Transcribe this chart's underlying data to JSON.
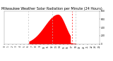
{
  "title": "Milwaukee Weather Solar Radiation per Minute (24 Hours)",
  "bg_color": "#ffffff",
  "plot_bg_color": "#ffffff",
  "fill_color": "#ff0000",
  "line_color": "#cc0000",
  "grid_color": "#bbbbbb",
  "red_vline_color": "#ff0000",
  "x_min": 0,
  "x_max": 1440,
  "y_min": 0,
  "y_max": 800,
  "peak_minute": 810,
  "peak_value": 720,
  "start_minute": 370,
  "end_minute": 1105,
  "dashed_lines": [
    360,
    720,
    1080,
    1440
  ],
  "red_vline": 1020,
  "title_fontsize": 3.5,
  "tick_fontsize": 2.2,
  "figwidth": 1.6,
  "figheight": 0.87,
  "dpi": 100
}
